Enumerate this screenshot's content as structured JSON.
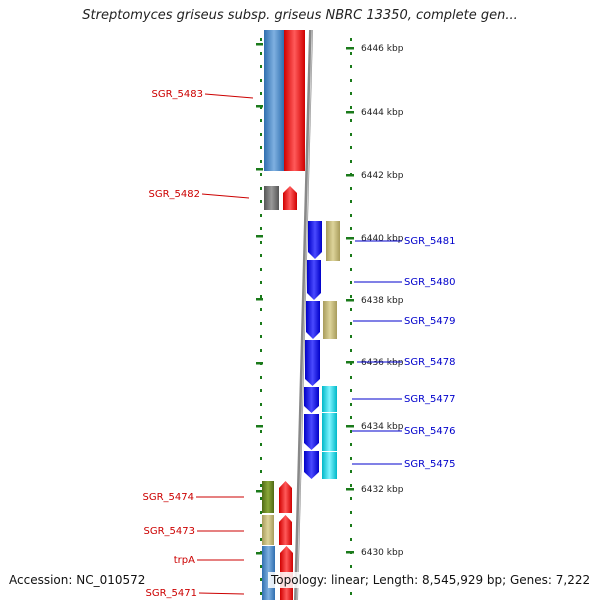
{
  "title": "Streptomyces griseus subsp. griseus NBRC 13350, complete gen...",
  "footer": {
    "accession": "Accession: NC_010572",
    "topology": "Topology: linear; Length: 8,545,929 bp; Genes: 7,222"
  },
  "colors": {
    "left_gene_label": "#cc0000",
    "right_gene_label": "#0000cc",
    "ruler_ticks": "#1a7a1a",
    "backbone": "#888888"
  },
  "ruler_labels": [
    "6446 kbp",
    "6444 kbp",
    "6442 kbp",
    "6440 kbp",
    "6438 kbp",
    "6436 kbp",
    "6434 kbp",
    "6432 kbp",
    "6430 kbp"
  ],
  "left_gene_labels": [
    "SGR_5483",
    "SGR_5482",
    "SGR_5474",
    "SGR_5473",
    "trpA",
    "SGR_5471"
  ],
  "right_gene_labels": [
    "SGR_5481",
    "SGR_5480",
    "SGR_5479",
    "SGR_5478",
    "SGR_5477",
    "SGR_5476",
    "SGR_5475"
  ]
}
